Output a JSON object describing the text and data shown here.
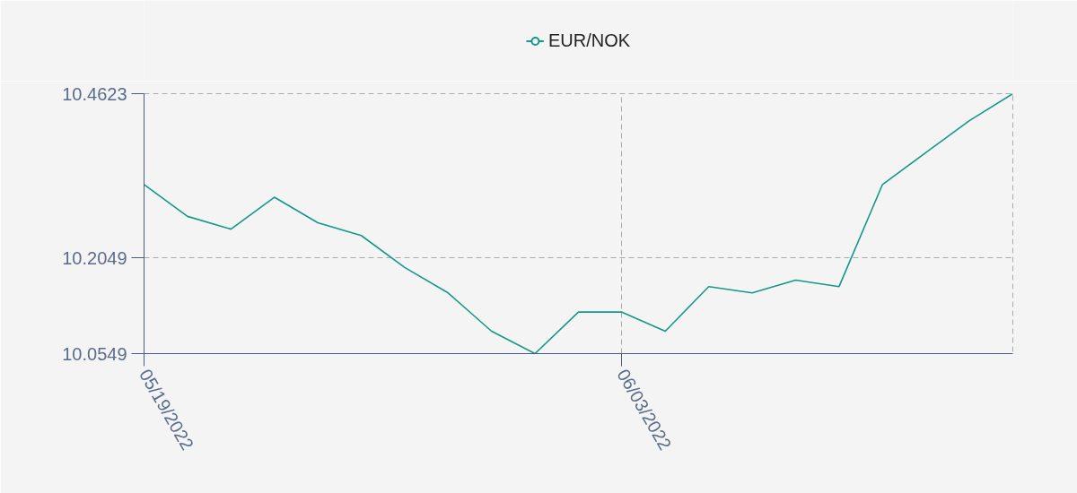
{
  "chart_data": {
    "type": "line",
    "categories": [
      "05/19/2022",
      null,
      null,
      null,
      null,
      null,
      null,
      null,
      null,
      null,
      null,
      "06/03/2022",
      null,
      null,
      null,
      null,
      null,
      null,
      null,
      null,
      null
    ],
    "series": [
      {
        "name": "EUR/NOK",
        "color": "#13998a",
        "values": [
          10.32,
          10.27,
          10.25,
          10.3,
          10.26,
          10.24,
          10.19,
          10.15,
          10.09,
          10.0549,
          10.12,
          10.12,
          10.09,
          10.16,
          10.15,
          10.17,
          10.16,
          10.32,
          10.37,
          10.42,
          10.4623
        ]
      }
    ],
    "ylim": [
      10.0549,
      10.4623
    ],
    "yticks": [
      10.0549,
      10.2049,
      10.4623
    ],
    "grid": true,
    "legend": "top",
    "line_style": "solid"
  }
}
